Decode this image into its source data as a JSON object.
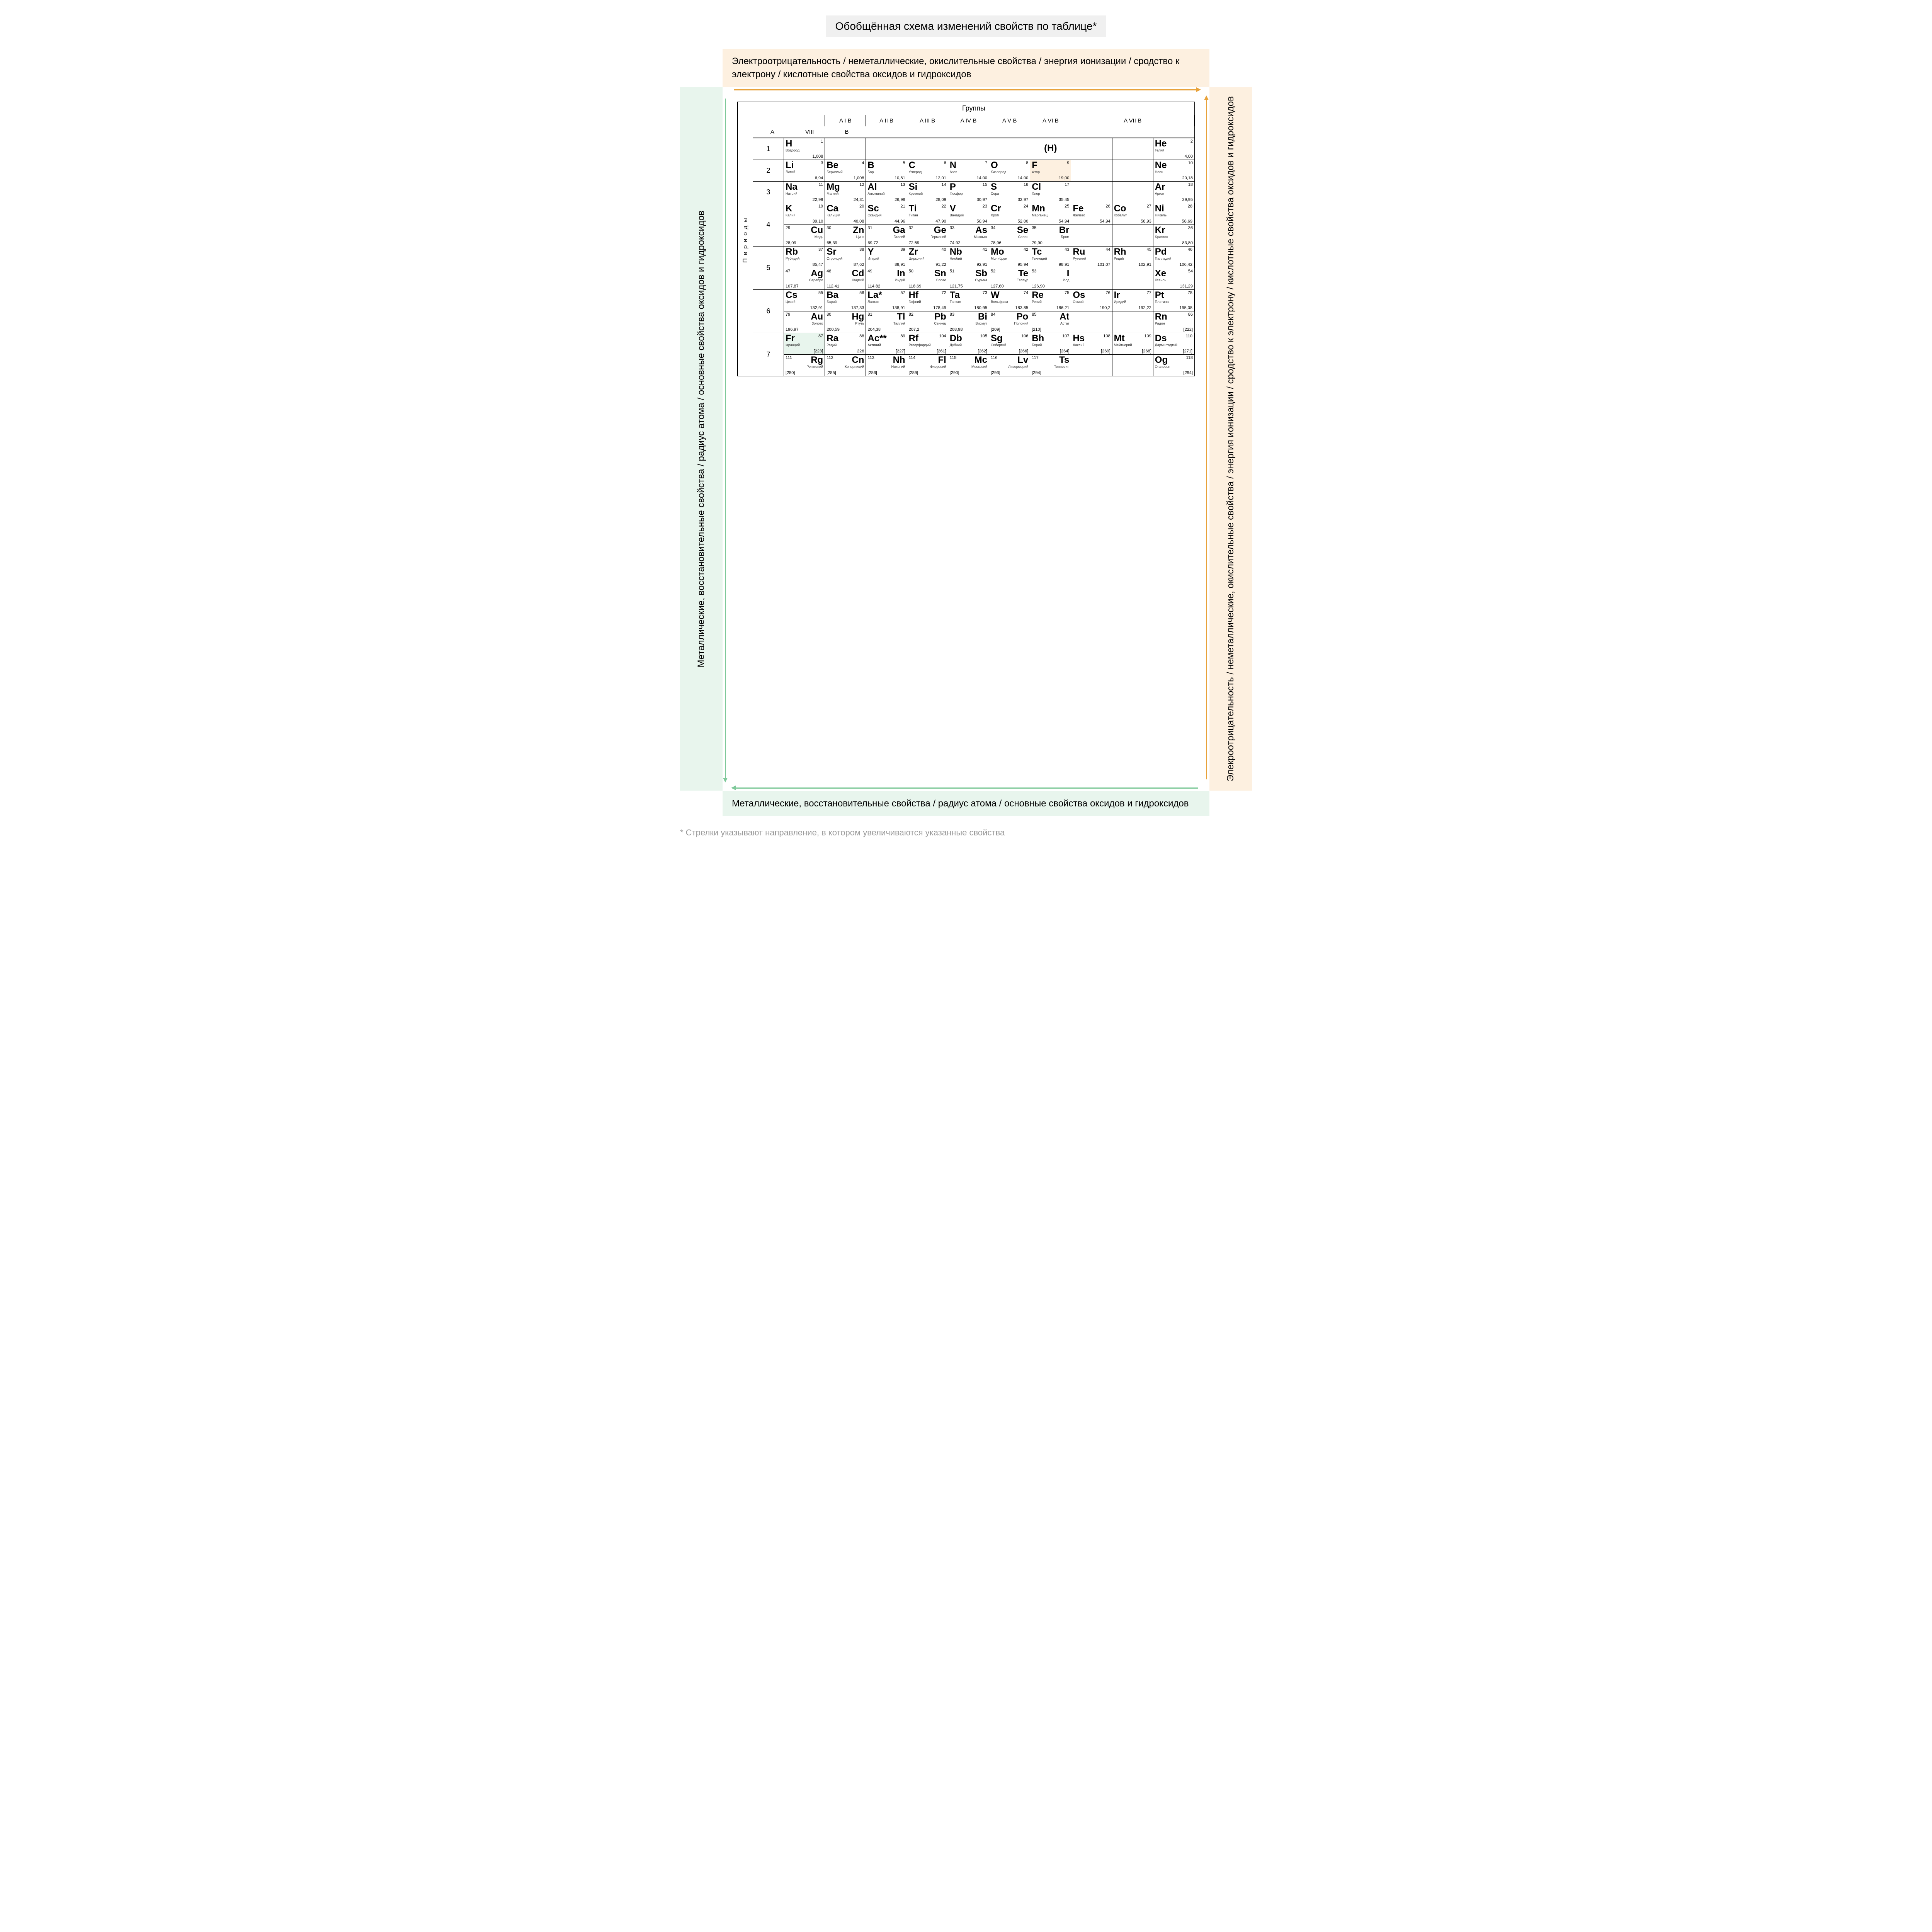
{
  "title": "Обобщённая схема изменений свойств по таблице*",
  "labels": {
    "top": "Электроотрицательность / неметаллические, окислительные свойства / энергия ионизации / сродство к электрону / кислотные свойства оксидов и гидроксидов",
    "bottom": "Металлические, восстановительные свойства / радиус атома / основные свойства оксидов и гидроксидов",
    "left": "Металлические, восстановительные свойства / радиус атома / основные свойства оксидов и гидроксидов",
    "right": "Элекроотрицательность / неметаллические, окислительные свойства / энергия ионизации / сродство к электрону / кислотные свойства оксидов и гидроксидов"
  },
  "footnote": "* Стрелки указывают направление, в котором увеличиваются указанные свойства",
  "colors": {
    "orange": "#e8a23a",
    "green": "#7fc99a",
    "orange_bg": "#fdf0e0",
    "green_bg": "#e8f5ed",
    "title_bg": "#f0f0f0"
  },
  "table": {
    "groups_header": "Группы",
    "periods_header": "Периоды",
    "group_labels": [
      "A I B",
      "A II B",
      "A III B",
      "A IV B",
      "A V B",
      "A VI B",
      "A VII B",
      "A",
      "VIII",
      "B"
    ],
    "periods": [
      {
        "n": "1",
        "rows": [
          [
            {
              "s": "H",
              "nm": "Водород",
              "z": "1",
              "m": "1,008"
            },
            {
              "empty": true
            },
            {
              "empty": true
            },
            {
              "empty": true
            },
            {
              "empty": true
            },
            {
              "empty": true
            },
            {
              "s": "(H)",
              "special": true
            },
            {
              "empty": true
            },
            {
              "empty": true
            },
            {
              "s": "He",
              "nm": "Гелий",
              "z": "2",
              "m": "4,00"
            }
          ]
        ]
      },
      {
        "n": "2",
        "rows": [
          [
            {
              "s": "Li",
              "nm": "Литий",
              "z": "3",
              "m": "6,94"
            },
            {
              "s": "Be",
              "nm": "Бериллий",
              "z": "4",
              "m": "1,008"
            },
            {
              "s": "B",
              "nm": "Бор",
              "z": "5",
              "m": "10,81"
            },
            {
              "s": "C",
              "nm": "Углерод",
              "z": "6",
              "m": "12,01"
            },
            {
              "s": "N",
              "nm": "Азот",
              "z": "7",
              "m": "14,00"
            },
            {
              "s": "O",
              "nm": "Кислород",
              "z": "8",
              "m": "14,00"
            },
            {
              "s": "F",
              "nm": "Фтор",
              "z": "9",
              "m": "19,00",
              "hl": "f"
            },
            {
              "empty": true
            },
            {
              "empty": true
            },
            {
              "s": "Ne",
              "nm": "Неон",
              "z": "10",
              "m": "20,18"
            }
          ]
        ]
      },
      {
        "n": "3",
        "rows": [
          [
            {
              "s": "Na",
              "nm": "Натрий",
              "z": "11",
              "m": "22,99"
            },
            {
              "s": "Mg",
              "nm": "Магний",
              "z": "12",
              "m": "24,31"
            },
            {
              "s": "Al",
              "nm": "Алюминий",
              "z": "13",
              "m": "26,98"
            },
            {
              "s": "Si",
              "nm": "Кремний",
              "z": "14",
              "m": "28,09"
            },
            {
              "s": "P",
              "nm": "Фосфор",
              "z": "15",
              "m": "30,97"
            },
            {
              "s": "S",
              "nm": "Сера",
              "z": "16",
              "m": "32,97"
            },
            {
              "s": "Cl",
              "nm": "Хлор",
              "z": "17",
              "m": "35,45"
            },
            {
              "empty": true
            },
            {
              "empty": true
            },
            {
              "s": "Ar",
              "nm": "Аргон",
              "z": "18",
              "m": "39,95"
            }
          ]
        ]
      },
      {
        "n": "4",
        "rows": [
          [
            {
              "s": "K",
              "nm": "Калий",
              "z": "19",
              "m": "39,10"
            },
            {
              "s": "Ca",
              "nm": "Кальций",
              "z": "20",
              "m": "40,08"
            },
            {
              "s": "Sc",
              "nm": "Скандий",
              "z": "21",
              "m": "44,96"
            },
            {
              "s": "Ti",
              "nm": "Титан",
              "z": "22",
              "m": "47,90"
            },
            {
              "s": "V",
              "nm": "Ванадий",
              "z": "23",
              "m": "50,94"
            },
            {
              "s": "Cr",
              "nm": "Хром",
              "z": "24",
              "m": "52,00"
            },
            {
              "s": "Mn",
              "nm": "Марганец",
              "z": "25",
              "m": "54,94"
            },
            {
              "s": "Fe",
              "nm": "Железо",
              "z": "26",
              "m": "54,94"
            },
            {
              "s": "Co",
              "nm": "Кобальт",
              "z": "27",
              "m": "58,93"
            },
            {
              "s": "Ni",
              "nm": "Никель",
              "z": "28",
              "m": "58,69"
            }
          ],
          [
            {
              "s": "Cu",
              "nm": "Медь",
              "z": "29",
              "m": "28,09",
              "r": true
            },
            {
              "s": "Zn",
              "nm": "Цинк",
              "z": "30",
              "m": "65,39",
              "r": true
            },
            {
              "s": "Ga",
              "nm": "Галлий",
              "z": "31",
              "m": "69,72",
              "r": true
            },
            {
              "s": "Ge",
              "nm": "Германий",
              "z": "32",
              "m": "72,59",
              "r": true
            },
            {
              "s": "As",
              "nm": "Мышьяк",
              "z": "33",
              "m": "74,92",
              "r": true
            },
            {
              "s": "Se",
              "nm": "Селен",
              "z": "34",
              "m": "78,96",
              "r": true
            },
            {
              "s": "Br",
              "nm": "Бром",
              "z": "35",
              "m": "79,90",
              "r": true
            },
            {
              "empty": true
            },
            {
              "empty": true
            },
            {
              "s": "Kr",
              "nm": "Криптон",
              "z": "36",
              "m": "83,80"
            }
          ]
        ]
      },
      {
        "n": "5",
        "rows": [
          [
            {
              "s": "Rb",
              "nm": "Рубидий",
              "z": "37",
              "m": "85,47"
            },
            {
              "s": "Sr",
              "nm": "Стронций",
              "z": "38",
              "m": "87,62"
            },
            {
              "s": "Y",
              "nm": "Иттрий",
              "z": "39",
              "m": "88,91"
            },
            {
              "s": "Zr",
              "nm": "Цирконий",
              "z": "40",
              "m": "91,22"
            },
            {
              "s": "Nb",
              "nm": "Ниобий",
              "z": "41",
              "m": "92,91"
            },
            {
              "s": "Mo",
              "nm": "Молибден",
              "z": "42",
              "m": "95,94"
            },
            {
              "s": "Tc",
              "nm": "Технеций",
              "z": "43",
              "m": "98,91"
            },
            {
              "s": "Ru",
              "nm": "Рутений",
              "z": "44",
              "m": "101,07"
            },
            {
              "s": "Rh",
              "nm": "Родий",
              "z": "45",
              "m": "102,91"
            },
            {
              "s": "Pd",
              "nm": "Палладий",
              "z": "46",
              "m": "106,42"
            }
          ],
          [
            {
              "s": "Ag",
              "nm": "Серебро",
              "z": "47",
              "m": "107,87",
              "r": true
            },
            {
              "s": "Cd",
              "nm": "Кадмий",
              "z": "48",
              "m": "112,41",
              "r": true
            },
            {
              "s": "In",
              "nm": "Индий",
              "z": "49",
              "m": "114,82",
              "r": true
            },
            {
              "s": "Sn",
              "nm": "Олово",
              "z": "50",
              "m": "118,69",
              "r": true
            },
            {
              "s": "Sb",
              "nm": "Сурьма",
              "z": "51",
              "m": "121,75",
              "r": true
            },
            {
              "s": "Te",
              "nm": "Теллур",
              "z": "52",
              "m": "127,60",
              "r": true
            },
            {
              "s": "I",
              "nm": "Иод",
              "z": "53",
              "m": "126,90",
              "r": true
            },
            {
              "empty": true
            },
            {
              "empty": true
            },
            {
              "s": "Xe",
              "nm": "Ксенон",
              "z": "54",
              "m": "131,29"
            }
          ]
        ]
      },
      {
        "n": "6",
        "rows": [
          [
            {
              "s": "Cs",
              "nm": "Цезий",
              "z": "55",
              "m": "132,91"
            },
            {
              "s": "Ba",
              "nm": "Барий",
              "z": "56",
              "m": "137,33"
            },
            {
              "s": "La*",
              "nm": "Лантан",
              "z": "57",
              "m": "138,91"
            },
            {
              "s": "Hf",
              "nm": "Гафний",
              "z": "72",
              "m": "178,49"
            },
            {
              "s": "Ta",
              "nm": "Тантал",
              "z": "73",
              "m": "180,95"
            },
            {
              "s": "W",
              "nm": "Вольфрам",
              "z": "74",
              "m": "183,85"
            },
            {
              "s": "Re",
              "nm": "Рений",
              "z": "75",
              "m": "186,21"
            },
            {
              "s": "Os",
              "nm": "Осмий",
              "z": "76",
              "m": "190,2"
            },
            {
              "s": "Ir",
              "nm": "Иридий",
              "z": "77",
              "m": "192,22"
            },
            {
              "s": "Pt",
              "nm": "Платина",
              "z": "78",
              "m": "195,08"
            }
          ],
          [
            {
              "s": "Au",
              "nm": "Золото",
              "z": "79",
              "m": "196,97",
              "r": true
            },
            {
              "s": "Hg",
              "nm": "Ртуть",
              "z": "80",
              "m": "200,59",
              "r": true
            },
            {
              "s": "Tl",
              "nm": "Таллий",
              "z": "81",
              "m": "204,38",
              "r": true
            },
            {
              "s": "Pb",
              "nm": "Свинец",
              "z": "82",
              "m": "207,2",
              "r": true
            },
            {
              "s": "Bi",
              "nm": "Висмут",
              "z": "83",
              "m": "208,98",
              "r": true
            },
            {
              "s": "Po",
              "nm": "Полоний",
              "z": "84",
              "m": "[209]",
              "r": true
            },
            {
              "s": "At",
              "nm": "Астат",
              "z": "85",
              "m": "[210]",
              "r": true
            },
            {
              "empty": true
            },
            {
              "empty": true
            },
            {
              "s": "Rn",
              "nm": "Радон",
              "z": "86",
              "m": "[222]"
            }
          ]
        ]
      },
      {
        "n": "7",
        "rows": [
          [
            {
              "s": "Fr",
              "nm": "Франций",
              "z": "87",
              "m": "[223]",
              "hl": "fr"
            },
            {
              "s": "Ra",
              "nm": "Радий",
              "z": "88",
              "m": "226"
            },
            {
              "s": "Ac**",
              "nm": "Актиний",
              "z": "89",
              "m": "[227]"
            },
            {
              "s": "Rf",
              "nm": "Резерфордий",
              "z": "104",
              "m": "[261]"
            },
            {
              "s": "Db",
              "nm": "Дубний",
              "z": "105",
              "m": "[262]"
            },
            {
              "s": "Sg",
              "nm": "Сиборгий",
              "z": "106",
              "m": "[266]"
            },
            {
              "s": "Bh",
              "nm": "Борий",
              "z": "107",
              "m": "[264]"
            },
            {
              "s": "Hs",
              "nm": "Хассий",
              "z": "108",
              "m": "[269]"
            },
            {
              "s": "Mt",
              "nm": "Мейтнерий",
              "z": "109",
              "m": "[268]"
            },
            {
              "s": "Ds",
              "nm": "Дармштадтий",
              "z": "110",
              "m": "[271]"
            }
          ],
          [
            {
              "s": "Rg",
              "nm": "Рентгений",
              "z": "111",
              "m": "[280]",
              "r": true
            },
            {
              "s": "Cn",
              "nm": "Коперниций",
              "z": "112",
              "m": "[285]",
              "r": true
            },
            {
              "s": "Nh",
              "nm": "Нихоний",
              "z": "113",
              "m": "[286]",
              "r": true
            },
            {
              "s": "Fl",
              "nm": "Флеровий",
              "z": "114",
              "m": "[289]",
              "r": true
            },
            {
              "s": "Mc",
              "nm": "Московий",
              "z": "115",
              "m": "[290]",
              "r": true
            },
            {
              "s": "Lv",
              "nm": "Ливерморий",
              "z": "116",
              "m": "[293]",
              "r": true
            },
            {
              "s": "Ts",
              "nm": "Теннесин",
              "z": "117",
              "m": "[294]",
              "r": true
            },
            {
              "empty": true
            },
            {
              "empty": true
            },
            {
              "s": "Og",
              "nm": "Оганесон",
              "z": "118",
              "m": "[294]"
            }
          ]
        ]
      }
    ]
  }
}
